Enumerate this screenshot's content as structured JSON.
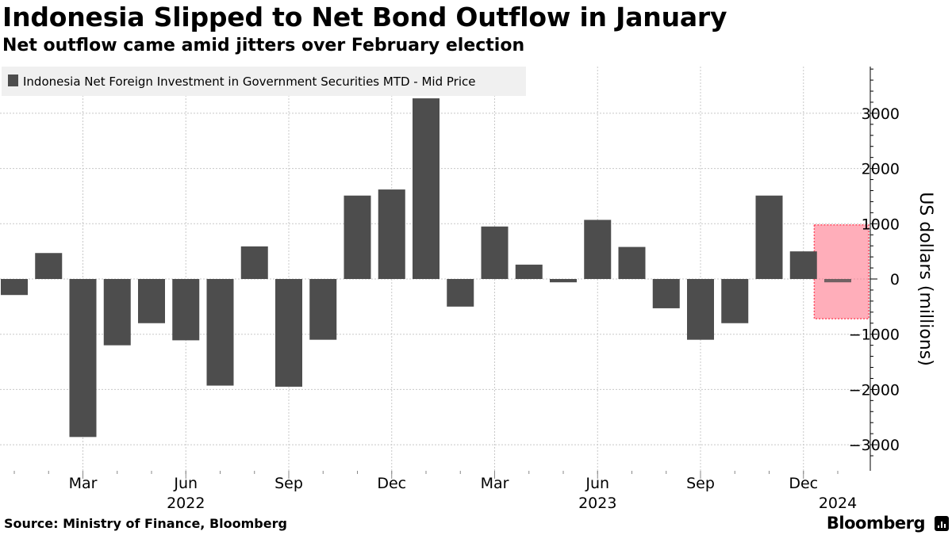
{
  "header": {
    "title": "Indonesia Slipped to Net Bond Outflow in January",
    "subtitle": "Net outflow came amid jitters over February election"
  },
  "footer": {
    "source": "Source: Ministry of Finance, Bloomberg",
    "brand": "Bloomberg"
  },
  "colors": {
    "bar": "#4d4d4d",
    "highlight_fill": "#ff6b81",
    "highlight_border": "#ff4b5f",
    "grid": "#c8c8c8",
    "legend_bg": "#f0f0f0"
  },
  "chart_data": {
    "type": "bar",
    "legend": "Indonesia Net Foreign Investment in Government Securities MTD - Mid Price",
    "ylabel": "US dollars (millions)",
    "ylim": [
      -3300,
      3800
    ],
    "yticks": [
      3000,
      2000,
      1000,
      0,
      -1000,
      -2000,
      -3000
    ],
    "months": [
      "2022-01",
      "2022-02",
      "2022-03",
      "2022-04",
      "2022-05",
      "2022-06",
      "2022-07",
      "2022-08",
      "2022-09",
      "2022-10",
      "2022-11",
      "2022-12",
      "2023-01",
      "2023-02",
      "2023-03",
      "2023-04",
      "2023-05",
      "2023-06",
      "2023-07",
      "2023-08",
      "2023-09",
      "2023-10",
      "2023-11",
      "2023-12",
      "2024-01"
    ],
    "values": [
      -290,
      470,
      -2860,
      -1200,
      -800,
      -1110,
      -1930,
      590,
      -1950,
      -1100,
      1510,
      1620,
      3270,
      -500,
      950,
      260,
      -60,
      1070,
      580,
      -530,
      -1100,
      -800,
      1510,
      500,
      -60
    ],
    "x_tick_labels": [
      {
        "label": "Mar",
        "index": 2
      },
      {
        "label": "Jun",
        "index": 5
      },
      {
        "label": "Sep",
        "index": 8
      },
      {
        "label": "Dec",
        "index": 11
      },
      {
        "label": "Mar",
        "index": 14
      },
      {
        "label": "Jun",
        "index": 17
      },
      {
        "label": "Sep",
        "index": 20
      },
      {
        "label": "Dec",
        "index": 23
      }
    ],
    "year_labels": [
      {
        "label": "2022",
        "index": 5
      },
      {
        "label": "2023",
        "index": 17
      },
      {
        "label": "2024",
        "index": 24
      }
    ],
    "highlight": {
      "x_start_index": 23.5,
      "x_end_index": 25.5,
      "y_min": -720,
      "y_max": 980
    }
  }
}
